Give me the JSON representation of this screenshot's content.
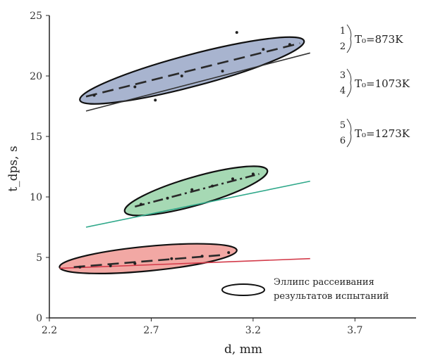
{
  "chart_data": {
    "type": "scatter",
    "title": "",
    "xlabel": "d, mm",
    "ylabel": "t_dps, s",
    "xlim": [
      2.2,
      4.0
    ],
    "ylim": [
      0,
      25
    ],
    "xticks": [
      "2.2",
      "2.7",
      "3.2",
      "3.7"
    ],
    "yticks": [
      "0",
      "5",
      "10",
      "15",
      "20",
      "25"
    ],
    "grid": false,
    "legend_position": "right",
    "groups": [
      {
        "label_top": "1",
        "label_bottom": "2",
        "label_sub": "T",
        "label_rest": "₀=873K",
        "fill": "#a8b4cf",
        "line_color": "#2a2a2a",
        "ellipse": {
          "x1": 2.35,
          "y1": 18.0,
          "x2": 3.45,
          "y2": 22.9,
          "width": 1.7
        },
        "dashed_fit": {
          "x": [
            2.38,
            3.43
          ],
          "y": [
            18.3,
            22.7
          ]
        },
        "solid_fit": {
          "x": [
            2.38,
            3.48
          ],
          "y": [
            17.1,
            21.9
          ],
          "color": "#333333"
        },
        "points": [
          [
            2.42,
            18.4
          ],
          [
            2.62,
            19.1
          ],
          [
            2.72,
            18.0
          ],
          [
            2.85,
            20.0
          ],
          [
            3.05,
            20.4
          ],
          [
            3.12,
            23.6
          ],
          [
            3.25,
            22.2
          ],
          [
            3.38,
            22.6
          ]
        ]
      },
      {
        "label_top": "3",
        "label_bottom": "4",
        "label_sub": "T",
        "label_rest": "₀=1073K",
        "fill": "#a6d9b4",
        "line_color": "#2a2a2a",
        "ellipse": {
          "x1": 2.57,
          "y1": 8.8,
          "x2": 3.27,
          "y2": 12.2,
          "width": 1.4
        },
        "dashed_fit": {
          "x": [
            2.62,
            3.23
          ],
          "y": [
            9.2,
            11.9
          ]
        },
        "solid_fit": {
          "x": [
            2.38,
            3.48
          ],
          "y": [
            7.5,
            11.3
          ],
          "color": "#2fa88a"
        },
        "points": [
          [
            2.65,
            9.4
          ],
          [
            2.78,
            9.9
          ],
          [
            2.9,
            10.6
          ],
          [
            3.0,
            10.9
          ],
          [
            3.1,
            11.5
          ],
          [
            3.2,
            11.9
          ]
        ]
      },
      {
        "label_top": "5",
        "label_bottom": "6",
        "label_sub": "T",
        "label_rest": "₀=1273K",
        "fill": "#f2a8a4",
        "line_color": "#2a2a2a",
        "ellipse": {
          "x1": 2.25,
          "y1": 4.2,
          "x2": 3.12,
          "y2": 5.6,
          "width": 1.1
        },
        "dashed_fit": {
          "x": [
            2.32,
            3.05
          ],
          "y": [
            4.2,
            5.2
          ]
        },
        "solid_fit": {
          "x": [
            2.25,
            3.48
          ],
          "y": [
            4.1,
            4.9
          ],
          "color": "#d33b4a"
        },
        "points": [
          [
            2.35,
            4.2
          ],
          [
            2.5,
            4.3
          ],
          [
            2.62,
            4.5
          ],
          [
            2.8,
            4.9
          ],
          [
            2.95,
            5.1
          ],
          [
            3.08,
            5.4
          ]
        ]
      }
    ],
    "ellipse_legend": [
      "Эллипс рассеивания",
      "результатов испытаний"
    ]
  },
  "colors": {
    "axis": "#222222",
    "ellipse_stroke": "#111111"
  }
}
